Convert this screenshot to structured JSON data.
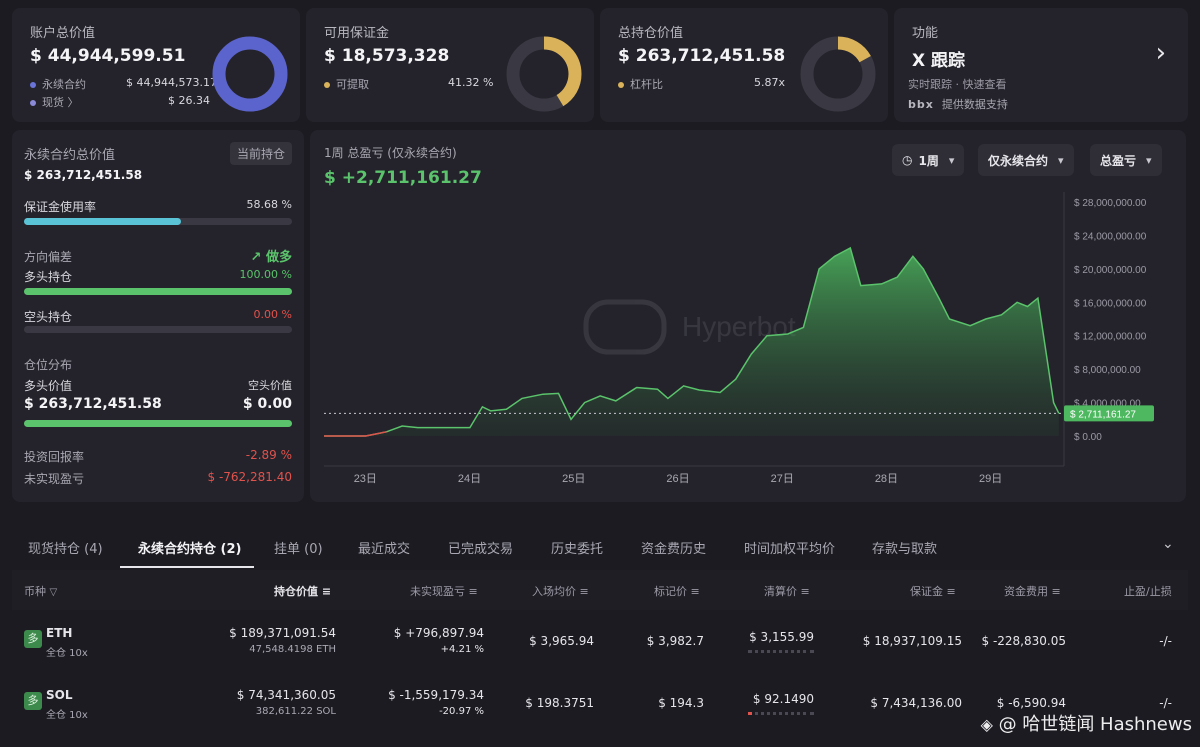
{
  "cards": {
    "account": {
      "title": "账户总价值",
      "value": "$ 44,944,599.51",
      "rows": [
        {
          "label": "永续合约",
          "value": "$ 44,944,573.17",
          "color": "#6a73d8"
        },
        {
          "label": "现货 〉",
          "value": "$ 26.34",
          "color": "#8b8ad8"
        }
      ],
      "donut_fraction": 0.9999,
      "donut_color": "#5b63cc"
    },
    "margin": {
      "title": "可用保证金",
      "value": "$ 18,573,328",
      "row": {
        "label": "可提取",
        "value": "41.32 %",
        "color": "#d9b25a"
      },
      "donut_fraction": 0.4132,
      "donut_color": "#d9b25a"
    },
    "position": {
      "title": "总持仓价值",
      "value": "$ 263,712,451.58",
      "row": {
        "label": "杠杆比",
        "value": "5.87x",
        "color": "#d9b25a"
      },
      "donut_fraction": 0.17,
      "donut_color": "#d9b25a"
    },
    "feature": {
      "title": "功能",
      "name": "X 跟踪",
      "subtitle": "实时跟踪 · 快速查看",
      "logo_text": "bbx",
      "provider": "提供数据支持",
      "arrow": "›"
    }
  },
  "left_panel": {
    "title": "永续合约总价值",
    "badge": "当前持仓",
    "value": "$ 263,712,451.58",
    "margin_usage_label": "保证金使用率",
    "margin_usage_value": "58.68 %",
    "margin_usage_fraction": 0.5868,
    "direction_label": "方向偏差",
    "direction_value": "做多",
    "long_label": "多头持仓",
    "long_value": "100.00 %",
    "long_fraction": 1.0,
    "short_label": "空头持仓",
    "short_value": "0.00 %",
    "short_fraction": 0.0,
    "dist_label": "仓位分布",
    "long_val_label": "多头价值",
    "short_val_label": "空头价值",
    "long_val": "$ 263,712,451.58",
    "short_val": "$ 0.00",
    "long_val_fraction": 1.0,
    "roi_label": "投资回报率",
    "roi_value": "-2.89 %",
    "upnl_label": "未实现盈亏",
    "upnl_value": "$ -762,281.40"
  },
  "chart_panel": {
    "title": "1周 总盈亏 (仅永续合约)",
    "value": "$ +2,711,161.27",
    "selectors": [
      "1周",
      "仅永续合约",
      "总盈亏"
    ],
    "watermark": "Hyperbot",
    "current_label": "$ 2,711,161.27"
  },
  "chart_data": {
    "type": "area",
    "title": "1周 总盈亏 (仅永续合约)",
    "x_ticks": [
      "23日",
      "24日",
      "25日",
      "26日",
      "27日",
      "28日",
      "29日"
    ],
    "y_ticks": [
      "$ 28,000,000.00",
      "$ 24,000,000.00",
      "$ 20,000,000.00",
      "$ 16,000,000.00",
      "$ 12,000,000.00",
      "$ 8,000,000.00",
      "$ 4,000,000.00",
      "$ 0.00"
    ],
    "ylim": [
      0,
      28000000
    ],
    "x_range": [
      22.6,
      29.35
    ],
    "current_value": 2711161.27,
    "points": [
      [
        22.6,
        0
      ],
      [
        23.0,
        0
      ],
      [
        23.2,
        500000
      ],
      [
        23.35,
        1200000
      ],
      [
        23.5,
        1000000
      ],
      [
        23.8,
        1000000
      ],
      [
        24.0,
        1000000
      ],
      [
        24.12,
        3500000
      ],
      [
        24.2,
        3000000
      ],
      [
        24.35,
        3200000
      ],
      [
        24.5,
        4500000
      ],
      [
        24.7,
        5000000
      ],
      [
        24.85,
        5100000
      ],
      [
        24.97,
        2000000
      ],
      [
        25.1,
        4000000
      ],
      [
        25.25,
        4800000
      ],
      [
        25.4,
        4200000
      ],
      [
        25.6,
        5800000
      ],
      [
        25.8,
        5600000
      ],
      [
        25.9,
        4500000
      ],
      [
        26.05,
        6000000
      ],
      [
        26.2,
        5500000
      ],
      [
        26.4,
        5200000
      ],
      [
        26.55,
        6800000
      ],
      [
        26.7,
        9800000
      ],
      [
        26.85,
        12000000
      ],
      [
        27.05,
        12200000
      ],
      [
        27.2,
        13000000
      ],
      [
        27.35,
        20000000
      ],
      [
        27.5,
        21500000
      ],
      [
        27.65,
        22500000
      ],
      [
        27.75,
        18000000
      ],
      [
        27.95,
        18200000
      ],
      [
        28.1,
        19000000
      ],
      [
        28.25,
        21500000
      ],
      [
        28.35,
        20000000
      ],
      [
        28.5,
        16500000
      ],
      [
        28.6,
        14000000
      ],
      [
        28.8,
        13200000
      ],
      [
        28.95,
        14000000
      ],
      [
        29.1,
        14500000
      ],
      [
        29.25,
        16000000
      ],
      [
        29.35,
        15500000
      ],
      [
        29.45,
        16500000
      ],
      [
        29.6,
        4000000
      ],
      [
        29.65,
        2711161
      ]
    ]
  },
  "tabs": [
    "现货持仓 (4)",
    "永续合约持仓 (2)",
    "挂单 (0)",
    "最近成交",
    "已完成交易",
    "历史委托",
    "资金费历史",
    "时间加权平均价",
    "存款与取款"
  ],
  "active_tab": 1,
  "table": {
    "headers": [
      "币种",
      "持仓价值",
      "未实现盈亏",
      "入场均价",
      "标记价",
      "清算价",
      "保证金",
      "资金费用",
      "止盈/止损"
    ],
    "rows": [
      {
        "badge": "多",
        "coin": "ETH",
        "mode": "全仓 10x",
        "value": "$ 189,371,091.54",
        "size": "47,548.4198 ETH",
        "pnl": "$ +796,897.94",
        "pnl_pct": "+4.21 %",
        "entry": "$ 3,965.94",
        "mark": "$ 3,982.7",
        "liq": "$ 3,155.99",
        "margin": "$ 18,937,109.15",
        "funding": "$ -228,830.05",
        "tpsl": "-/-",
        "pnl_positive": true
      },
      {
        "badge": "多",
        "coin": "SOL",
        "mode": "全仓 10x",
        "value": "$ 74,341,360.05",
        "size": "382,611.22 SOL",
        "pnl": "$ -1,559,179.34",
        "pnl_pct": "-20.97 %",
        "entry": "$ 198.3751",
        "mark": "$ 194.3",
        "liq": "$ 92.1490",
        "margin": "$ 7,434,136.00",
        "funding": "$ -6,590.94",
        "tpsl": "-/-",
        "pnl_positive": false
      }
    ]
  },
  "footer_watermark": "@ 哈世链闻 Hashnews"
}
